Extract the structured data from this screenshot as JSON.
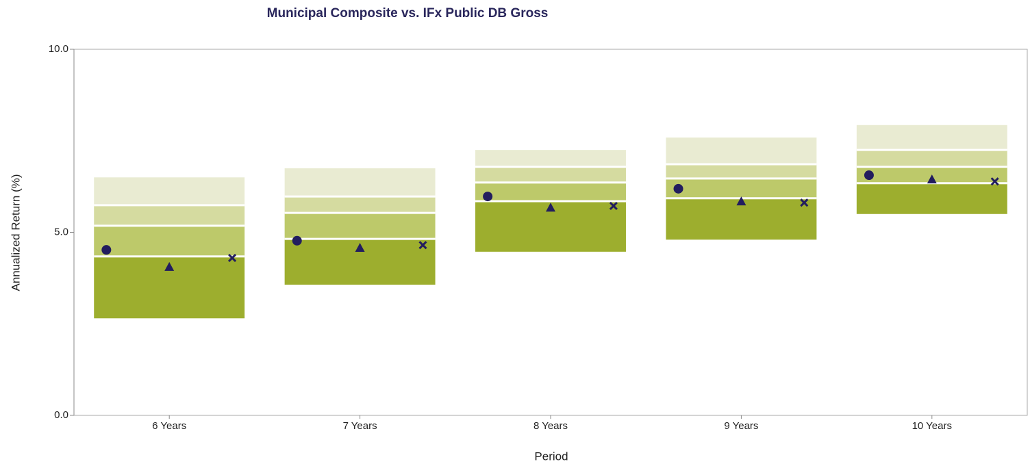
{
  "chart_data": {
    "type": "floating-range",
    "title": "Municipal Composite vs. IFx Public DB Gross",
    "x_label": "Period",
    "y_label": "Annualized Return (%)",
    "categories": [
      "6 Years",
      "7 Years",
      "8 Years",
      "9 Years",
      "10 Years"
    ],
    "ranges": {
      "p95": [
        6.5,
        6.75,
        7.25,
        7.59,
        7.93
      ],
      "p75": [
        5.74,
        5.98,
        6.79,
        6.86,
        7.25
      ],
      "p50": [
        5.18,
        5.53,
        6.36,
        6.47,
        6.79
      ],
      "p25": [
        4.34,
        4.82,
        5.85,
        5.93,
        6.34
      ],
      "p5": [
        2.65,
        3.57,
        4.47,
        4.8,
        5.5
      ]
    },
    "band_colors": [
      "#e9ebd2",
      "#d5dba0",
      "#bdc96a",
      "#9dae2e"
    ],
    "series": [
      {
        "marker": "circle",
        "color": "#221d5e",
        "values": [
          4.52,
          4.77,
          5.98,
          6.19,
          6.56
        ]
      },
      {
        "marker": "triangle",
        "color": "#221d5e",
        "values": [
          4.04,
          4.56,
          5.66,
          5.83,
          6.43
        ]
      },
      {
        "marker": "cross",
        "color": "#221d5e",
        "values": [
          4.3,
          4.65,
          5.72,
          5.81,
          6.39
        ]
      }
    ],
    "ylim": [
      0,
      10
    ],
    "yticks": [
      {
        "value": 0,
        "label": "0.0"
      },
      {
        "value": 5,
        "label": "5.0"
      },
      {
        "value": 10,
        "label": "10.0"
      }
    ]
  }
}
